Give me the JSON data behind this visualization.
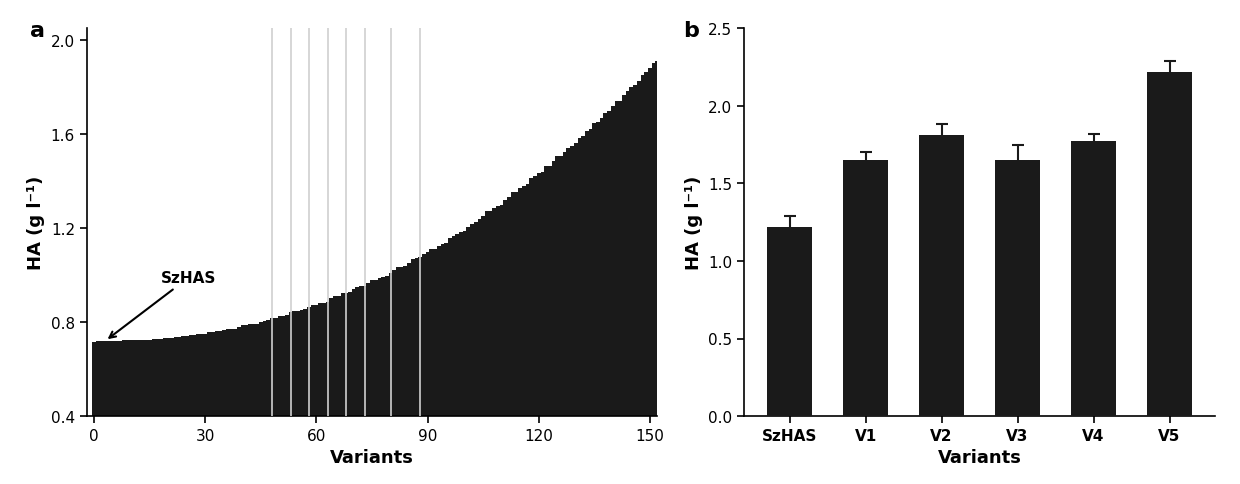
{
  "panel_a": {
    "n_variants": 155,
    "szhas_index": 3,
    "szhas_value": 0.72,
    "y_min": 0.4,
    "y_max": 2.0,
    "x_min": 0,
    "x_max": 150,
    "yticks": [
      0.4,
      0.8,
      1.2,
      1.6,
      2.0
    ],
    "xticks": [
      0,
      30,
      60,
      90,
      120,
      150
    ],
    "xlabel": "Variants",
    "ylabel": "HA (g l⁻¹)",
    "annotation_text": "SzHAS",
    "white_bar_positions": [
      48,
      53,
      58,
      63,
      68,
      73,
      80,
      88
    ],
    "bar_color": "#1a1a1a",
    "white_bar_color": "#d0d0d0"
  },
  "panel_b": {
    "categories": [
      "SzHAS",
      "V1",
      "V2",
      "V3",
      "V4",
      "V5"
    ],
    "values": [
      1.22,
      1.65,
      1.81,
      1.65,
      1.77,
      2.22
    ],
    "errors": [
      0.07,
      0.05,
      0.07,
      0.1,
      0.05,
      0.07
    ],
    "y_min": 0.0,
    "y_max": 2.5,
    "yticks": [
      0.0,
      0.5,
      1.0,
      1.5,
      2.0,
      2.5
    ],
    "xlabel": "Variants",
    "ylabel": "HA (g l⁻¹)",
    "bar_color": "#1a1a1a",
    "error_color": "#1a1a1a"
  },
  "label_a": "a",
  "label_b": "b",
  "background_color": "#ffffff",
  "tick_fontsize": 11,
  "label_fontsize": 13,
  "panel_label_fontsize": 16
}
